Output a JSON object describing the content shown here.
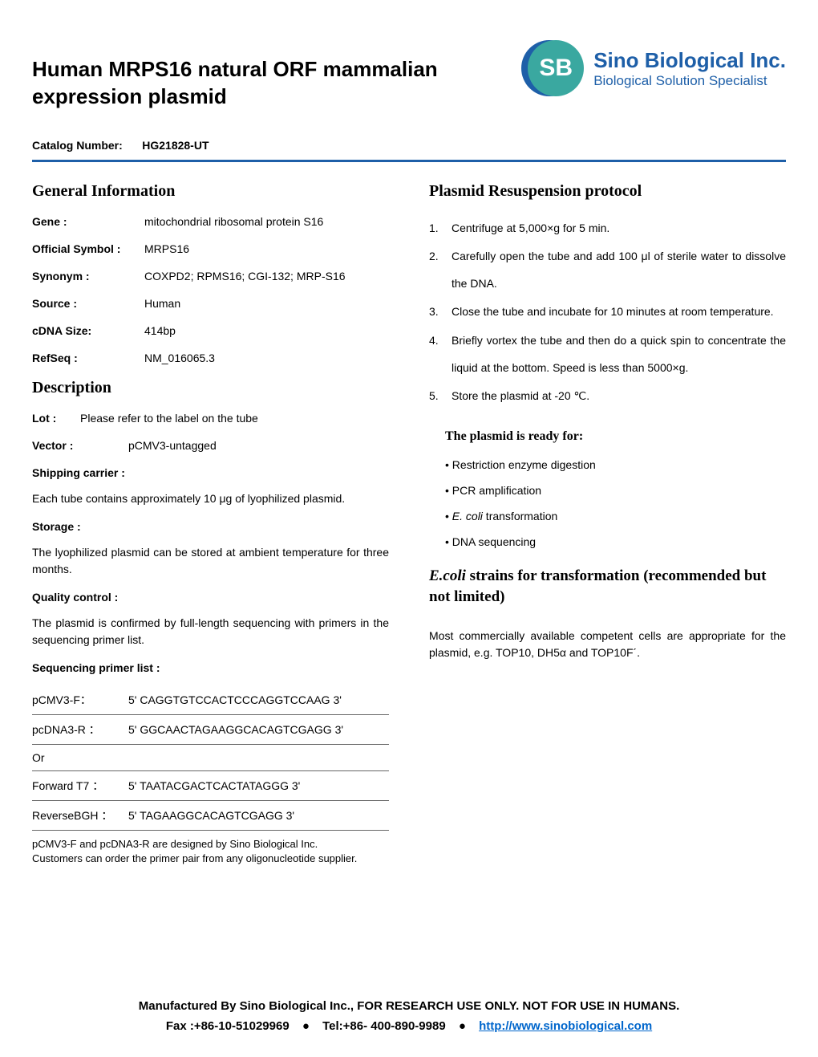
{
  "header": {
    "title": "Human MRPS16 natural ORF mammalian expression plasmid",
    "logo_text": "SB",
    "company_name": "Sino Biological Inc.",
    "company_tagline": "Biological Solution Specialist"
  },
  "catalog": {
    "label": "Catalog Number:",
    "value": "HG21828-UT"
  },
  "general_info": {
    "heading": "General Information",
    "rows": [
      {
        "label": "Gene :",
        "value": "mitochondrial ribosomal protein S16"
      },
      {
        "label": "Official Symbol :",
        "value": "MRPS16"
      },
      {
        "label": "Synonym :",
        "value": "COXPD2; RPMS16; CGI-132; MRP-S16"
      },
      {
        "label": "Source :",
        "value": "Human"
      },
      {
        "label": "cDNA Size:",
        "value": "414bp"
      },
      {
        "label": "RefSeq :",
        "value": "NM_016065.3"
      }
    ]
  },
  "description": {
    "heading": "Description",
    "lot_label": "Lot :",
    "lot_value": "Please refer to the label on the tube",
    "vector_label": "Vector :",
    "vector_value": "pCMV3-untagged",
    "shipping_label": "Shipping carrier :",
    "shipping_text": "Each tube contains approximately 10 μg of lyophilized plasmid.",
    "storage_label": "Storage :",
    "storage_text": "The lyophilized plasmid can be stored at ambient temperature for three months.",
    "qc_label": "Quality control :",
    "qc_text": "The plasmid is confirmed by full-length sequencing with primers in the sequencing primer list.",
    "primer_label": "Sequencing primer list :",
    "primers": [
      {
        "name": "pCMV3-F：",
        "seq": "5' CAGGTGTCCACTCCCAGGTCCAAG 3'"
      },
      {
        "name": "pcDNA3-R ：",
        "seq": "5' GGCAACTAGAAGGCACAGTCGAGG 3'"
      },
      {
        "name": "Or",
        "seq": ""
      },
      {
        "name": "Forward T7 ：",
        "seq": "5' TAATACGACTCACTATAGGG 3'"
      },
      {
        "name": "ReverseBGH ：",
        "seq": "5' TAGAAGGCACAGTCGAGG 3'"
      }
    ],
    "primer_note1": "pCMV3-F and pcDNA3-R are designed by Sino Biological Inc.",
    "primer_note2": "Customers can order the primer pair from any oligonucleotide supplier."
  },
  "protocol": {
    "heading": "Plasmid Resuspension protocol",
    "steps": [
      "Centrifuge at 5,000×g for 5 min.",
      "Carefully open the tube and add 100 μl of sterile water to dissolve  the DNA.",
      "Close the tube and incubate for 10 minutes at room temperature.",
      "Briefly vortex the tube and then do a quick spin to concentrate the liquid at the bottom. Speed is less than 5000×g.",
      "Store the plasmid at  -20 ℃."
    ],
    "ready_heading": "The plasmid is ready for:",
    "ready_items": [
      "Restriction enzyme digestion",
      "PCR amplification",
      "E. coli  transformation",
      "DNA sequencing"
    ]
  },
  "ecoli": {
    "heading_italic": "E.coli",
    "heading_rest": " strains for transformation (recommended but not limited)",
    "text": "Most commercially available competent cells are appropriate for the plasmid, e.g. TOP10, DH5α and TOP10F´."
  },
  "footer": {
    "line1": "Manufactured By Sino Biological Inc.,  FOR RESEARCH USE ONLY. NOT FOR USE IN HUMANS.",
    "fax": "Fax :+86-10-51029969",
    "tel": "Tel:+86- 400-890-9989",
    "url": "http://www.sinobiological.com"
  },
  "colors": {
    "primary_blue": "#1e5fa8",
    "teal": "#3aa8a0",
    "link_blue": "#0066cc"
  }
}
